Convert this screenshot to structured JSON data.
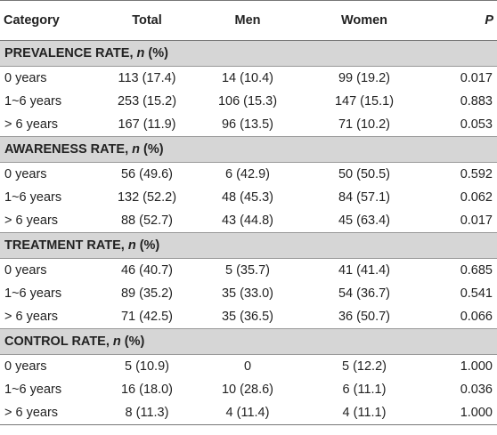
{
  "headers": [
    "Category",
    "Total",
    "Men",
    "Women",
    "P"
  ],
  "sections": [
    {
      "title_main": "PREVALENCE RATE, ",
      "title_n": "n",
      "title_rest": " (%)",
      "rows": [
        {
          "cat": "0 years",
          "total": "113 (17.4)",
          "men": "14 (10.4)",
          "women": "99 (19.2)",
          "p": "0.017"
        },
        {
          "cat": "1~6 years",
          "total": "253 (15.2)",
          "men": "106 (15.3)",
          "women": "147 (15.1)",
          "p": "0.883"
        },
        {
          "cat": "> 6 years",
          "total": "167 (11.9)",
          "men": "96 (13.5)",
          "women": "71 (10.2)",
          "p": "0.053"
        }
      ]
    },
    {
      "title_main": "AWARENESS RATE, ",
      "title_n": "n",
      "title_rest": " (%)",
      "rows": [
        {
          "cat": "0 years",
          "total": "56 (49.6)",
          "men": "6 (42.9)",
          "women": "50 (50.5)",
          "p": "0.592"
        },
        {
          "cat": "1~6 years",
          "total": "132 (52.2)",
          "men": "48 (45.3)",
          "women": "84 (57.1)",
          "p": "0.062"
        },
        {
          "cat": "> 6 years",
          "total": "88 (52.7)",
          "men": "43 (44.8)",
          "women": "45 (63.4)",
          "p": "0.017"
        }
      ]
    },
    {
      "title_main": "TREATMENT RATE, ",
      "title_n": "n",
      "title_rest": " (%)",
      "rows": [
        {
          "cat": "0 years",
          "total": "46 (40.7)",
          "men": "5 (35.7)",
          "women": "41 (41.4)",
          "p": "0.685"
        },
        {
          "cat": "1~6 years",
          "total": "89 (35.2)",
          "men": "35 (33.0)",
          "women": "54 (36.7)",
          "p": "0.541"
        },
        {
          "cat": "> 6 years",
          "total": "71 (42.5)",
          "men": "35 (36.5)",
          "women": "36 (50.7)",
          "p": "0.066"
        }
      ]
    },
    {
      "title_main": "CONTROL RATE, ",
      "title_n": "n",
      "title_rest": " (%)",
      "rows": [
        {
          "cat": "0 years",
          "total": "5 (10.9)",
          "men": "0",
          "women": "5 (12.2)",
          "p": "1.000"
        },
        {
          "cat": "1~6 years",
          "total": "16 (18.0)",
          "men": "10 (28.6)",
          "women": "6 (11.1)",
          "p": "0.036"
        },
        {
          "cat": "> 6 years",
          "total": "8 (11.3)",
          "men": "4 (11.4)",
          "women": "4 (11.1)",
          "p": "1.000"
        }
      ]
    }
  ]
}
